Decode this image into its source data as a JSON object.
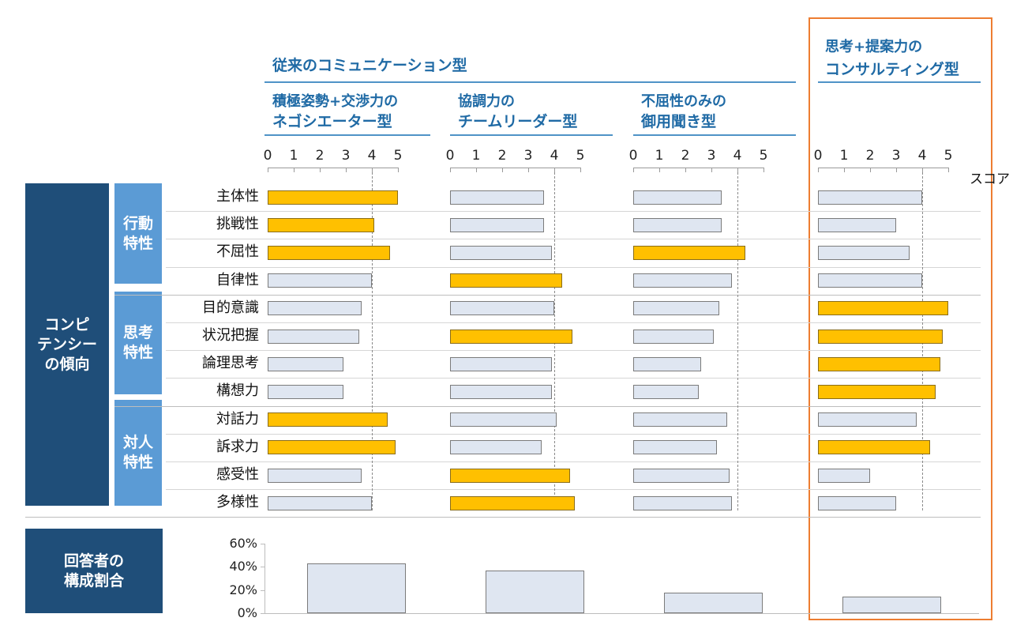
{
  "headers": {
    "traditional": "従来のコミュニケーション型",
    "consulting_line1": "思考+提案力の",
    "consulting_line2": "コンサルティング型"
  },
  "score_label": "スコア",
  "categories_group_label_line1": "コンピ",
  "categories_group_label_line2": "テンシー",
  "categories_group_label_line3": "の傾向",
  "response_label_line1": "回答者の",
  "response_label_line2": "構成割合",
  "chart_data": {
    "type": "bar",
    "orientation": "horizontal",
    "xlim": [
      0,
      5
    ],
    "x_tick_labels": [
      "0",
      "1",
      "2",
      "3",
      "4",
      "5"
    ],
    "groups": [
      {
        "label_line1": "行動",
        "label_line2": "特性",
        "rows": [
          0,
          1,
          2,
          3
        ]
      },
      {
        "label_line1": "思考",
        "label_line2": "特性",
        "rows": [
          4,
          5,
          6,
          7
        ]
      },
      {
        "label_line1": "対人",
        "label_line2": "特性",
        "rows": [
          8,
          9,
          10,
          11
        ]
      }
    ],
    "categories": [
      "主体性",
      "挑戦性",
      "不屈性",
      "自律性",
      "目的意識",
      "状況把握",
      "論理思考",
      "構想力",
      "対話力",
      "訴求力",
      "感受性",
      "多様性"
    ],
    "series": [
      {
        "name_line1": "積極姿勢+交渉力の",
        "name_line2": "ネゴシエーター型",
        "average": 4.0,
        "values": [
          5.0,
          4.1,
          4.7,
          4.0,
          3.6,
          3.5,
          2.9,
          2.9,
          4.6,
          4.9,
          3.6,
          4.0
        ],
        "highlight": [
          true,
          true,
          true,
          false,
          false,
          false,
          false,
          false,
          true,
          true,
          false,
          false
        ],
        "response_share": 43
      },
      {
        "name_line1": "協調力の",
        "name_line2": "チームリーダー型",
        "average": 4.0,
        "values": [
          3.6,
          3.6,
          3.9,
          4.3,
          4.0,
          4.7,
          3.9,
          3.9,
          4.1,
          3.5,
          4.6,
          4.8
        ],
        "highlight": [
          false,
          false,
          false,
          true,
          false,
          true,
          false,
          false,
          false,
          false,
          true,
          true
        ],
        "response_share": 37
      },
      {
        "name_line1": "不屈性のみの",
        "name_line2": "御用聞き型",
        "average": 4.0,
        "values": [
          3.4,
          3.4,
          4.3,
          3.8,
          3.3,
          3.1,
          2.6,
          2.5,
          3.6,
          3.2,
          3.7,
          3.8
        ],
        "highlight": [
          false,
          false,
          true,
          false,
          false,
          false,
          false,
          false,
          false,
          false,
          false,
          false
        ],
        "response_share": 18
      },
      {
        "name_line1": "",
        "name_line2": "",
        "average": 4.0,
        "values": [
          4.0,
          3.0,
          3.5,
          4.0,
          5.0,
          4.8,
          4.7,
          4.5,
          3.8,
          4.3,
          2.0,
          3.0
        ],
        "highlight": [
          false,
          false,
          false,
          false,
          true,
          true,
          true,
          true,
          false,
          true,
          false,
          false
        ],
        "response_share": 14
      }
    ],
    "response_chart": {
      "ylim": [
        0,
        60
      ],
      "y_tick_labels": [
        "0%",
        "20%",
        "40%",
        "60%"
      ]
    }
  }
}
